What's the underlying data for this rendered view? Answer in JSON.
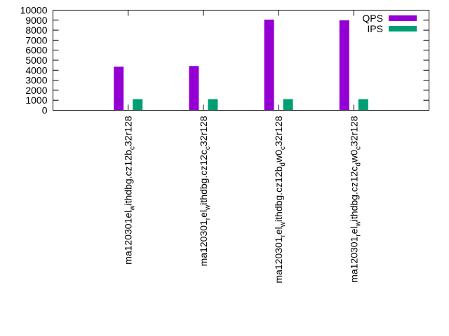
{
  "chart_data": {
    "type": "bar",
    "title": "",
    "xlabel": "",
    "ylabel": "",
    "ylim": [
      0,
      10000
    ],
    "yticks": [
      0,
      1000,
      2000,
      3000,
      4000,
      5000,
      6000,
      7000,
      8000,
      9000,
      10000
    ],
    "grid": false,
    "legend_position": "top-right",
    "categories": [
      {
        "label": "ma120301_el_ithdbg.cz12b_c32r128",
        "display": [
          {
            "text": "ma120301",
            "sub": false
          },
          {
            "text": "el",
            "sub": false
          },
          {
            "text": "w",
            "sub": true
          },
          {
            "text": "ithdbg.cz12b",
            "sub": false
          },
          {
            "text": "c",
            "sub": true
          },
          {
            "text": "32r128",
            "sub": false
          }
        ]
      },
      {
        "label": "ma120301_el_ithdbg.cz12c_c32r128",
        "display": [
          {
            "text": "ma120301",
            "sub": false
          },
          {
            "text": "r",
            "sub": true
          },
          {
            "text": "el",
            "sub": false
          },
          {
            "text": "w",
            "sub": true
          },
          {
            "text": "ithdbg.cz12c",
            "sub": false
          },
          {
            "text": "c",
            "sub": true
          },
          {
            "text": "32r128",
            "sub": false
          }
        ]
      },
      {
        "label": "ma120301_el_ithdbg.cz12b_d_w0_c32r128",
        "display": [
          {
            "text": "ma120301",
            "sub": false
          },
          {
            "text": "r",
            "sub": true
          },
          {
            "text": "el",
            "sub": false
          },
          {
            "text": "w",
            "sub": true
          },
          {
            "text": "ithdbg.cz12b",
            "sub": false
          },
          {
            "text": "d",
            "sub": true
          },
          {
            "text": "w0",
            "sub": false
          },
          {
            "text": "c",
            "sub": true
          },
          {
            "text": "32r128",
            "sub": false
          }
        ]
      },
      {
        "label": "ma120301_el_ithdbg.cz12c_d_w0_c32r128",
        "display": [
          {
            "text": "ma120301",
            "sub": false
          },
          {
            "text": "r",
            "sub": true
          },
          {
            "text": "el",
            "sub": false
          },
          {
            "text": "w",
            "sub": true
          },
          {
            "text": "ithdbg.cz12c",
            "sub": false
          },
          {
            "text": "d",
            "sub": true
          },
          {
            "text": "w0",
            "sub": false
          },
          {
            "text": "c",
            "sub": true
          },
          {
            "text": "32r128",
            "sub": false
          }
        ]
      }
    ],
    "series": [
      {
        "name": "QPS",
        "color": "#9400d3",
        "values": [
          4350,
          4420,
          9050,
          8980
        ]
      },
      {
        "name": "IPS",
        "color": "#009e73",
        "values": [
          1110,
          1110,
          1110,
          1110
        ]
      }
    ]
  }
}
